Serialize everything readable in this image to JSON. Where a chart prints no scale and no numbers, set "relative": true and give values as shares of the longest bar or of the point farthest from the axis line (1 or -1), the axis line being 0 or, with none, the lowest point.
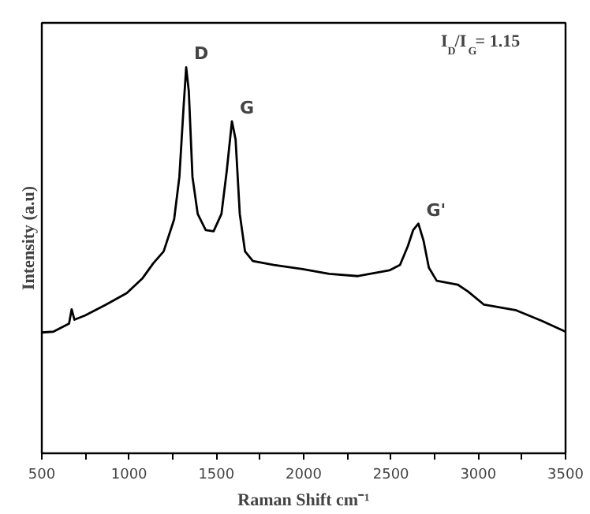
{
  "chart_data": {
    "type": "line",
    "relative": true,
    "xlabel": "Raman Shift cm⁻¹",
    "ylabel": "Intensity (a.u)",
    "x": [
      500,
      566,
      656,
      671,
      687,
      747,
      867,
      987,
      1078,
      1138,
      1198,
      1258,
      1288,
      1312,
      1327,
      1342,
      1363,
      1393,
      1439,
      1484,
      1529,
      1559,
      1589,
      1610,
      1634,
      1664,
      1709,
      1830,
      1995,
      2146,
      2311,
      2491,
      2552,
      2597,
      2627,
      2657,
      2687,
      2717,
      2762,
      2882,
      2942,
      3033,
      3213,
      3364,
      3500
    ],
    "series": [
      {
        "color": "#000000",
        "values": [
          0.313,
          0.315,
          0.336,
          0.373,
          0.346,
          0.357,
          0.385,
          0.415,
          0.454,
          0.492,
          0.523,
          0.606,
          0.716,
          0.896,
          1.0,
          0.938,
          0.716,
          0.62,
          0.578,
          0.575,
          0.62,
          0.73,
          0.86,
          0.813,
          0.62,
          0.523,
          0.498,
          0.488,
          0.477,
          0.465,
          0.459,
          0.474,
          0.488,
          0.537,
          0.578,
          0.595,
          0.55,
          0.481,
          0.447,
          0.437,
          0.419,
          0.385,
          0.371,
          0.343,
          0.315
        ]
      }
    ],
    "xlim": [
      500,
      3500
    ],
    "xticks": [
      500,
      {
        "value": 750,
        "label": null
      },
      1000,
      {
        "value": 1250,
        "label": null
      },
      1500,
      {
        "value": 1750,
        "label": null
      },
      2000,
      {
        "value": 2250,
        "label": null
      },
      2500,
      {
        "value": 2750,
        "label": null
      },
      3000,
      {
        "value": 3250,
        "label": null
      },
      3500
    ],
    "annotations": [
      {
        "text": "D",
        "x": 1327,
        "y": 1.0
      },
      {
        "text": "G",
        "x": 1589,
        "y": 0.86
      },
      {
        "text": "G'",
        "x": 2657,
        "y": 0.595
      },
      "I$_{D}$/I$_{G}$= 1.15"
    ]
  }
}
